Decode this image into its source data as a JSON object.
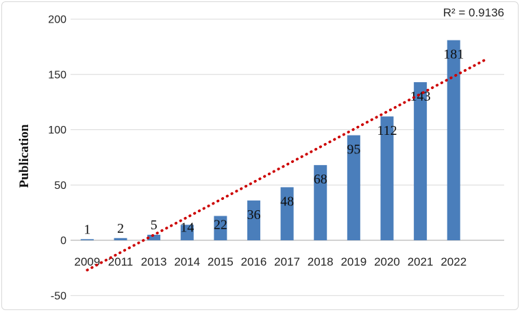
{
  "window": {
    "background": "#ffffff",
    "border_color": "#d8d8d8"
  },
  "chart_data": {
    "type": "bar",
    "title": "",
    "categories": [
      "2009",
      "2011",
      "2013",
      "2014",
      "2015",
      "2016",
      "2017",
      "2018",
      "2019",
      "2020",
      "2021",
      "2022"
    ],
    "values": [
      1,
      2,
      5,
      14,
      22,
      36,
      48,
      68,
      95,
      112,
      143,
      181
    ],
    "xlabel": "",
    "ylabel": "Publication",
    "ylim": [
      -50,
      200
    ],
    "yticks": [
      200,
      150,
      100,
      50,
      0,
      -50
    ],
    "grid": true,
    "legend": "none",
    "data_labels": true,
    "annotation": {
      "text": "R² = 0.9136",
      "position": "top-right"
    },
    "trendline": {
      "kind": "linear",
      "slope": 15.92,
      "intercept": -42.87,
      "start_period": 1,
      "end_period": 13,
      "style": "dotted",
      "color": "#cc0000"
    },
    "colors": {
      "bar": "#4a7ebb",
      "gridline": "#d9d9d9",
      "axis_line": "#c3c3c3",
      "data_label_text": "#0f0f0f",
      "axis_text": "#262626",
      "trendline": "#cc0000"
    }
  }
}
